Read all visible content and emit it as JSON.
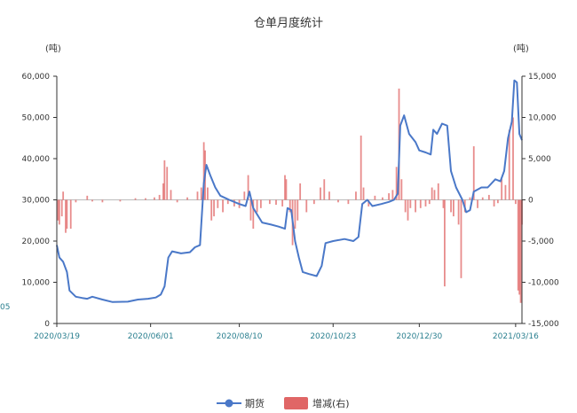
{
  "chart_data": {
    "type": "line+bar",
    "title": "仓单月度统计",
    "left_unit": "(吨)",
    "right_unit": "(吨)",
    "edge_label": "05",
    "y_left": {
      "min": 0,
      "max": 60000,
      "ticks": [
        "0",
        "10,000",
        "20,000",
        "30,000",
        "40,000",
        "50,000",
        "60,000"
      ]
    },
    "y_right": {
      "min": -15000,
      "max": 15000,
      "ticks": [
        "-15,000",
        "-10,000",
        "-5,000",
        "0",
        "5,000",
        "10,000",
        "15,000"
      ]
    },
    "x_range": [
      "2020-03-19",
      "2021-03-21"
    ],
    "x_ticks": [
      "2020/03/19",
      "2020/06/01",
      "2020/08/10",
      "2020/10/23",
      "2020/12/30",
      "2021/03/16"
    ],
    "legend": [
      "期货",
      "增减(右)"
    ],
    "colors": {
      "line": "#4a78c8",
      "bar": "#e06666",
      "axis": "#333333",
      "date": "#2a7f8f"
    },
    "series": [
      {
        "name": "期货",
        "kind": "line",
        "axis": "left",
        "points": [
          [
            "2020-03-19",
            19000
          ],
          [
            "2020-03-21",
            16000
          ],
          [
            "2020-03-24",
            15000
          ],
          [
            "2020-03-27",
            12500
          ],
          [
            "2020-03-29",
            8000
          ],
          [
            "2020-04-03",
            6500
          ],
          [
            "2020-04-08",
            6200
          ],
          [
            "2020-04-12",
            6000
          ],
          [
            "2020-04-16",
            6500
          ],
          [
            "2020-04-24",
            5800
          ],
          [
            "2020-05-02",
            5200
          ],
          [
            "2020-05-14",
            5300
          ],
          [
            "2020-05-22",
            5800
          ],
          [
            "2020-05-30",
            6000
          ],
          [
            "2020-06-05",
            6300
          ],
          [
            "2020-06-09",
            7000
          ],
          [
            "2020-06-12",
            9000
          ],
          [
            "2020-06-15",
            16000
          ],
          [
            "2020-06-18",
            17500
          ],
          [
            "2020-06-25",
            17000
          ],
          [
            "2020-07-02",
            17300
          ],
          [
            "2020-07-06",
            18500
          ],
          [
            "2020-07-10",
            19000
          ],
          [
            "2020-07-13",
            34000
          ],
          [
            "2020-07-15",
            38500
          ],
          [
            "2020-07-18",
            36000
          ],
          [
            "2020-07-22",
            33000
          ],
          [
            "2020-07-26",
            31000
          ],
          [
            "2020-08-02",
            30000
          ],
          [
            "2020-08-10",
            29000
          ],
          [
            "2020-08-15",
            28500
          ],
          [
            "2020-08-18",
            32000
          ],
          [
            "2020-08-21",
            28000
          ],
          [
            "2020-08-28",
            24500
          ],
          [
            "2020-09-04",
            24000
          ],
          [
            "2020-09-10",
            23500
          ],
          [
            "2020-09-15",
            23000
          ],
          [
            "2020-09-17",
            28000
          ],
          [
            "2020-09-20",
            27500
          ],
          [
            "2020-09-23",
            20000
          ],
          [
            "2020-09-26",
            16000
          ],
          [
            "2020-09-29",
            12500
          ],
          [
            "2020-10-04",
            12000
          ],
          [
            "2020-10-10",
            11500
          ],
          [
            "2020-10-14",
            14000
          ],
          [
            "2020-10-17",
            19500
          ],
          [
            "2020-10-23",
            20000
          ],
          [
            "2020-11-01",
            20500
          ],
          [
            "2020-11-08",
            20000
          ],
          [
            "2020-11-12",
            21000
          ],
          [
            "2020-11-15",
            29000
          ],
          [
            "2020-11-19",
            30000
          ],
          [
            "2020-11-23",
            28500
          ],
          [
            "2020-11-30",
            29000
          ],
          [
            "2020-12-06",
            29500
          ],
          [
            "2020-12-10",
            30000
          ],
          [
            "2020-12-13",
            31500
          ],
          [
            "2020-12-15",
            48000
          ],
          [
            "2020-12-18",
            50500
          ],
          [
            "2020-12-22",
            46000
          ],
          [
            "2020-12-27",
            44000
          ],
          [
            "2020-12-30",
            42000
          ],
          [
            "2021-01-04",
            41500
          ],
          [
            "2021-01-08",
            41000
          ],
          [
            "2021-01-10",
            47000
          ],
          [
            "2021-01-13",
            46000
          ],
          [
            "2021-01-17",
            48500
          ],
          [
            "2021-01-21",
            48000
          ],
          [
            "2021-01-24",
            37000
          ],
          [
            "2021-01-28",
            33000
          ],
          [
            "2021-02-02",
            30000
          ],
          [
            "2021-02-05",
            27000
          ],
          [
            "2021-02-08",
            27500
          ],
          [
            "2021-02-11",
            32000
          ],
          [
            "2021-02-17",
            33000
          ],
          [
            "2021-02-22",
            33000
          ],
          [
            "2021-02-28",
            35000
          ],
          [
            "2021-03-04",
            34500
          ],
          [
            "2021-03-07",
            37000
          ],
          [
            "2021-03-10",
            45000
          ],
          [
            "2021-03-13",
            49000
          ],
          [
            "2021-03-15",
            59000
          ],
          [
            "2021-03-17",
            58500
          ],
          [
            "2021-03-19",
            46000
          ],
          [
            "2021-03-21",
            44500
          ]
        ]
      },
      {
        "name": "增减(右)",
        "kind": "bar",
        "axis": "right",
        "points": [
          [
            "2020-03-20",
            -2500
          ],
          [
            "2020-03-21",
            -3000
          ],
          [
            "2020-03-23",
            -2000
          ],
          [
            "2020-03-24",
            1000
          ],
          [
            "2020-03-26",
            -4000
          ],
          [
            "2020-03-27",
            -3500
          ],
          [
            "2020-03-30",
            -3500
          ],
          [
            "2020-04-03",
            -300
          ],
          [
            "2020-04-12",
            500
          ],
          [
            "2020-04-16",
            -200
          ],
          [
            "2020-04-24",
            -300
          ],
          [
            "2020-05-08",
            -200
          ],
          [
            "2020-05-20",
            200
          ],
          [
            "2020-05-28",
            200
          ],
          [
            "2020-06-04",
            300
          ],
          [
            "2020-06-08",
            600
          ],
          [
            "2020-06-11",
            2000
          ],
          [
            "2020-06-12",
            4800
          ],
          [
            "2020-06-14",
            4000
          ],
          [
            "2020-06-17",
            1200
          ],
          [
            "2020-06-22",
            -300
          ],
          [
            "2020-06-30",
            300
          ],
          [
            "2020-07-08",
            1000
          ],
          [
            "2020-07-11",
            1500
          ],
          [
            "2020-07-13",
            7000
          ],
          [
            "2020-07-14",
            6000
          ],
          [
            "2020-07-16",
            1500
          ],
          [
            "2020-07-19",
            -2500
          ],
          [
            "2020-07-21",
            -2000
          ],
          [
            "2020-07-24",
            -1000
          ],
          [
            "2020-07-28",
            -1500
          ],
          [
            "2020-08-01",
            -500
          ],
          [
            "2020-08-06",
            -800
          ],
          [
            "2020-08-10",
            -1000
          ],
          [
            "2020-08-14",
            1000
          ],
          [
            "2020-08-17",
            3000
          ],
          [
            "2020-08-19",
            -2500
          ],
          [
            "2020-08-21",
            -3500
          ],
          [
            "2020-08-24",
            -1500
          ],
          [
            "2020-08-27",
            -1000
          ],
          [
            "2020-09-03",
            -500
          ],
          [
            "2020-09-08",
            -600
          ],
          [
            "2020-09-13",
            -800
          ],
          [
            "2020-09-15",
            3000
          ],
          [
            "2020-09-16",
            2500
          ],
          [
            "2020-09-19",
            -1500
          ],
          [
            "2020-09-21",
            -5500
          ],
          [
            "2020-09-23",
            -3500
          ],
          [
            "2020-09-25",
            -2500
          ],
          [
            "2020-09-27",
            2000
          ],
          [
            "2020-10-02",
            -1500
          ],
          [
            "2020-10-08",
            -500
          ],
          [
            "2020-10-13",
            1500
          ],
          [
            "2020-10-16",
            2500
          ],
          [
            "2020-10-20",
            1000
          ],
          [
            "2020-10-27",
            -300
          ],
          [
            "2020-11-04",
            -500
          ],
          [
            "2020-11-10",
            1000
          ],
          [
            "2020-11-14",
            7800
          ],
          [
            "2020-11-16",
            1500
          ],
          [
            "2020-11-20",
            -800
          ],
          [
            "2020-11-25",
            500
          ],
          [
            "2020-12-01",
            300
          ],
          [
            "2020-12-06",
            800
          ],
          [
            "2020-12-09",
            1200
          ],
          [
            "2020-12-12",
            4000
          ],
          [
            "2020-12-14",
            13500
          ],
          [
            "2020-12-16",
            2500
          ],
          [
            "2020-12-19",
            -1500
          ],
          [
            "2020-12-21",
            -2500
          ],
          [
            "2020-12-23",
            -1000
          ],
          [
            "2020-12-27",
            -1500
          ],
          [
            "2020-12-31",
            -1000
          ],
          [
            "2021-01-04",
            -800
          ],
          [
            "2021-01-07",
            -500
          ],
          [
            "2021-01-09",
            1500
          ],
          [
            "2021-01-11",
            1200
          ],
          [
            "2021-01-14",
            2000
          ],
          [
            "2021-01-18",
            -1000
          ],
          [
            "2021-01-19",
            -10500
          ],
          [
            "2021-01-24",
            -1500
          ],
          [
            "2021-01-26",
            -2000
          ],
          [
            "2021-01-30",
            -3000
          ],
          [
            "2021-02-01",
            -9500
          ],
          [
            "2021-02-04",
            -1500
          ],
          [
            "2021-02-08",
            300
          ],
          [
            "2021-02-11",
            6500
          ],
          [
            "2021-02-14",
            -1000
          ],
          [
            "2021-02-18",
            300
          ],
          [
            "2021-02-23",
            600
          ],
          [
            "2021-02-27",
            -800
          ],
          [
            "2021-03-02",
            -400
          ],
          [
            "2021-03-05",
            2500
          ],
          [
            "2021-03-08",
            1800
          ],
          [
            "2021-03-11",
            8500
          ],
          [
            "2021-03-14",
            10000
          ],
          [
            "2021-03-16",
            -500
          ],
          [
            "2021-03-18",
            -11000
          ],
          [
            "2021-03-19",
            -11500
          ],
          [
            "2021-03-20",
            -12500
          ],
          [
            "2021-03-21",
            -3000
          ]
        ]
      }
    ]
  }
}
